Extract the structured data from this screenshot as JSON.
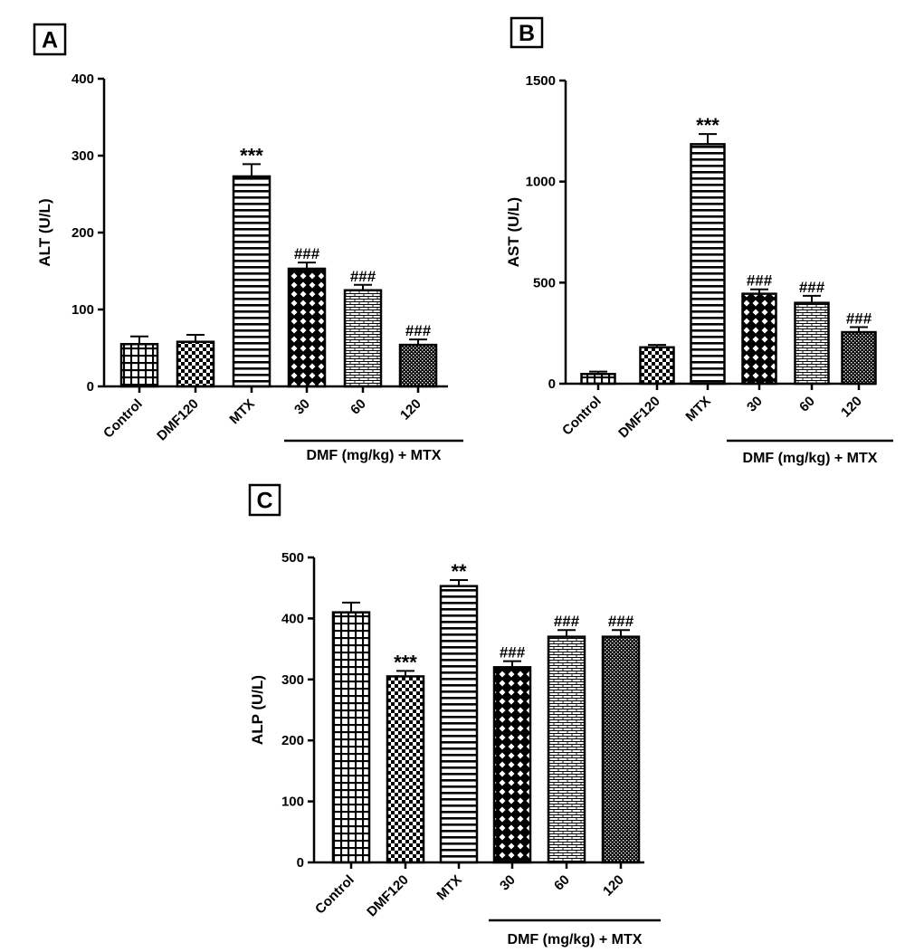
{
  "chart_data": [
    {
      "type": "bar",
      "panel": "A",
      "categories": [
        "Control",
        "DMF120",
        "MTX",
        "30",
        "60",
        "120"
      ],
      "values": [
        55,
        58,
        273,
        153,
        125,
        54
      ],
      "errors": [
        10,
        9,
        16,
        8,
        7,
        7
      ],
      "significance": [
        "",
        "",
        "***",
        "###",
        "###",
        "###"
      ],
      "patterns": [
        "grid",
        "check",
        "hlines",
        "diamond",
        "brick",
        "dense"
      ],
      "ylabel": "ALT (U/L)",
      "ylim": [
        0,
        400
      ],
      "yticks": [
        0,
        100,
        200,
        300,
        400
      ],
      "group_label": "DMF (mg/kg) + MTX",
      "grid": false
    },
    {
      "type": "bar",
      "panel": "B",
      "categories": [
        "Control",
        "DMF120",
        "MTX",
        "30",
        "60",
        "120"
      ],
      "values": [
        48,
        180,
        1185,
        445,
        400,
        255
      ],
      "errors": [
        12,
        12,
        50,
        22,
        35,
        25
      ],
      "significance": [
        "",
        "",
        "***",
        "###",
        "###",
        "###"
      ],
      "patterns": [
        "grid",
        "check",
        "hlines",
        "diamond",
        "brick",
        "dense"
      ],
      "ylabel": "AST (U/L)",
      "ylim": [
        0,
        1500
      ],
      "yticks": [
        0,
        500,
        1000,
        1500
      ],
      "group_label": "DMF (mg/kg) + MTX",
      "grid": false
    },
    {
      "type": "bar",
      "panel": "C",
      "categories": [
        "Control",
        "DMF120",
        "MTX",
        "30",
        "60",
        "120"
      ],
      "values": [
        410,
        305,
        453,
        320,
        370,
        370
      ],
      "errors": [
        16,
        9,
        10,
        10,
        11,
        11
      ],
      "significance": [
        "",
        "***",
        "**",
        "###",
        "###",
        "###"
      ],
      "patterns": [
        "grid",
        "check",
        "hlines",
        "diamond",
        "brick",
        "dense"
      ],
      "ylabel": "ALP (U/L)",
      "ylim": [
        0,
        500
      ],
      "yticks": [
        0,
        100,
        200,
        300,
        400,
        500
      ],
      "group_label": "DMF (mg/kg) + MTX",
      "grid": false
    }
  ],
  "colors": {
    "bar_stroke": "#000000",
    "background": "#ffffff"
  }
}
